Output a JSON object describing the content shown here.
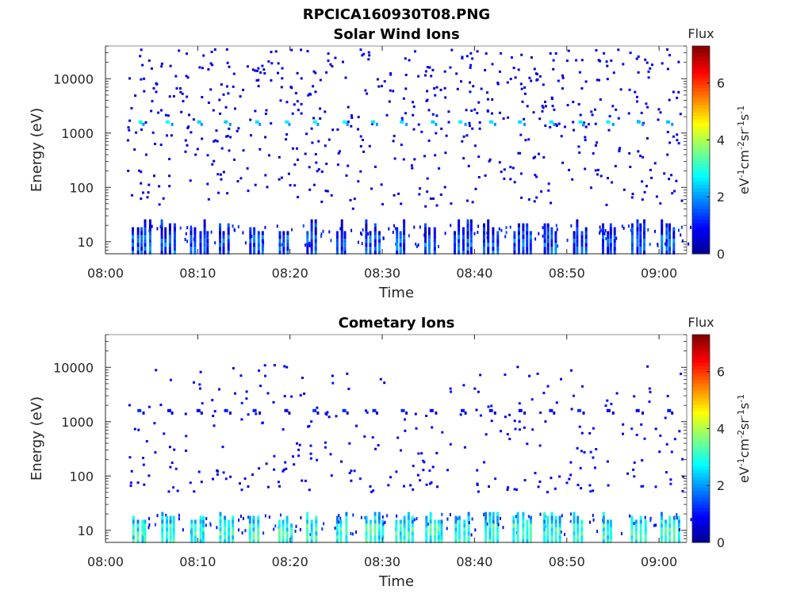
{
  "figure_title": "RPCICA160930T08.PNG",
  "colorbar_title": "Flux",
  "colorbar_unit": "eV-1cm-2sr-1s-1",
  "colormap": [
    "#00008f",
    "#0000ff",
    "#0080ff",
    "#00ffff",
    "#80ff80",
    "#ffff00",
    "#ff8000",
    "#ff0000",
    "#800000"
  ],
  "chart_data": [
    {
      "type": "heatmap",
      "title": "Solar Wind Ions",
      "xlabel": "Time",
      "ylabel": "Energy (eV)",
      "x_tick_labels": [
        "08:00",
        "08:10",
        "08:20",
        "08:30",
        "08:40",
        "08:50",
        "09:00"
      ],
      "x_tick_minutes": [
        0,
        10,
        20,
        30,
        40,
        50,
        60
      ],
      "x_range_minutes": [
        0,
        63
      ],
      "y_tick_labels": [
        "10",
        "100",
        "1000",
        "10000"
      ],
      "y_tick_values": [
        10,
        100,
        1000,
        10000
      ],
      "y_scale": "log",
      "y_range": [
        6,
        40000
      ],
      "colorbar_ticks": [
        "0",
        "2",
        "4",
        "6"
      ],
      "colorbar_range": [
        0,
        7.3
      ],
      "data_start_minute": 2,
      "data_end_minute": 62.5,
      "pulse_minutes": [
        3.5,
        6.6,
        9.8,
        12.9,
        16.1,
        19.3,
        22.4,
        25.6,
        28.8,
        32.0,
        35.2,
        38.4,
        41.6,
        44.8,
        48.0,
        51.2,
        54.4,
        57.6,
        60.8
      ],
      "band_energy_ev": 1600,
      "band_flux": 2.6,
      "low_energy_flux": 1.4,
      "scatter_flux": 0.4,
      "seed": 17
    },
    {
      "type": "heatmap",
      "title": "Cometary Ions",
      "xlabel": "Time",
      "ylabel": "Energy (eV)",
      "x_tick_labels": [
        "08:00",
        "08:10",
        "08:20",
        "08:30",
        "08:40",
        "08:50",
        "09:00"
      ],
      "x_tick_minutes": [
        0,
        10,
        20,
        30,
        40,
        50,
        60
      ],
      "x_range_minutes": [
        0,
        63
      ],
      "y_tick_labels": [
        "10",
        "100",
        "1000",
        "10000"
      ],
      "y_tick_values": [
        10,
        100,
        1000,
        10000
      ],
      "y_scale": "log",
      "y_range": [
        6,
        40000
      ],
      "colorbar_ticks": [
        "0",
        "2",
        "4",
        "6"
      ],
      "colorbar_range": [
        0,
        7.3
      ],
      "data_start_minute": 2,
      "data_end_minute": 62.5,
      "pulse_minutes": [
        3.5,
        6.6,
        9.8,
        12.9,
        16.1,
        19.3,
        22.4,
        25.6,
        28.8,
        32.0,
        35.2,
        38.4,
        41.6,
        44.8,
        48.0,
        51.2,
        54.4,
        57.6,
        60.8
      ],
      "band_energy_ev": 1600,
      "band_flux": 1.1,
      "low_energy_flux": 2.9,
      "scatter_flux": 0.6,
      "seed": 53
    }
  ]
}
